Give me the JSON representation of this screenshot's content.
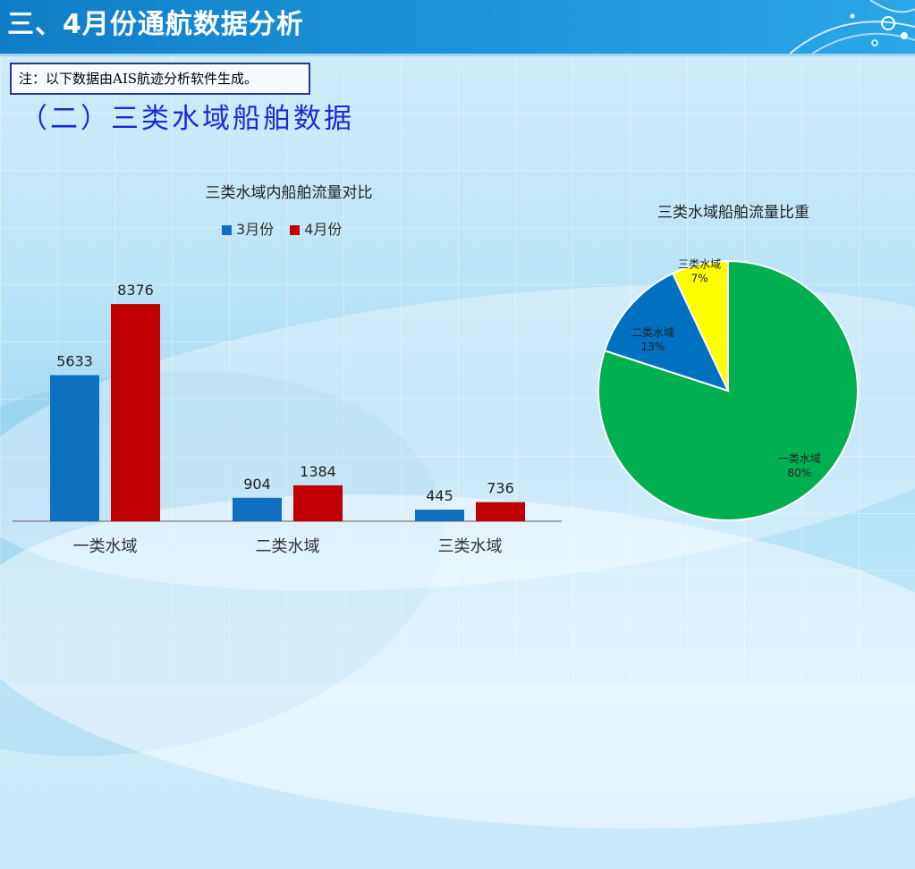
{
  "header": {
    "title": "三、4月份通航数据分析"
  },
  "note": {
    "text": "注：以下数据由AIS航迹分析软件生成。"
  },
  "subtitle": "（二）三类水域船舶数据",
  "colors": {
    "march": "#0f6fc0",
    "april": "#c00000",
    "cat1": "#00b050",
    "cat2": "#0070c0",
    "cat3": "#ffff00"
  },
  "chart_data": [
    {
      "type": "bar",
      "title": "三类水域内船舶流量对比",
      "categories": [
        "一类水域",
        "二类水域",
        "三类水域"
      ],
      "series": [
        {
          "name": "3月份",
          "values": [
            5633,
            904,
            445
          ]
        },
        {
          "name": "4月份",
          "values": [
            8376,
            1384,
            736
          ]
        }
      ],
      "ylim": [
        0,
        10000
      ],
      "legend": "top"
    },
    {
      "type": "pie",
      "title": "三类水域船舶流量比重",
      "slices": [
        {
          "label": "一类水域",
          "value": 80,
          "text": "80%"
        },
        {
          "label": "二类水域",
          "value": 13,
          "text": "13%"
        },
        {
          "label": "三类水域",
          "value": 7,
          "text": "7%"
        }
      ]
    }
  ]
}
